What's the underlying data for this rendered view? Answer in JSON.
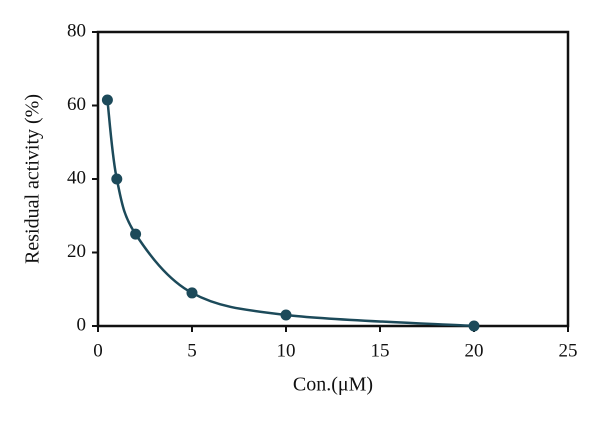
{
  "chart_data": {
    "type": "scatter",
    "x_label": "Con.(μM)",
    "y_label": "Residual activity (%)",
    "series": [
      {
        "x": [
          0.5,
          1,
          2,
          5,
          10,
          20
        ],
        "values": [
          61.5,
          40,
          25,
          9,
          3,
          0
        ],
        "color": "#1c4a5a"
      }
    ],
    "xlim": [
      0,
      25
    ],
    "xticks": [
      0,
      5,
      10,
      15,
      20,
      25
    ],
    "ylim": [
      0,
      80
    ],
    "yticks": [
      0,
      20,
      40,
      60,
      80
    ],
    "line": true
  }
}
